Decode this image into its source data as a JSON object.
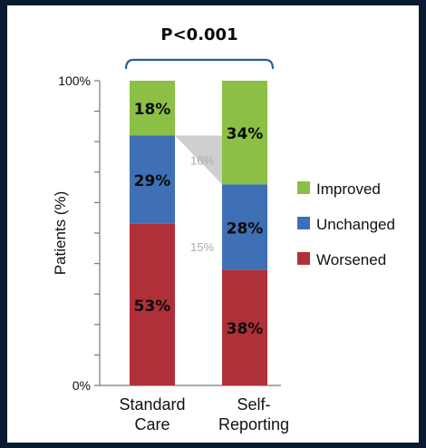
{
  "chart_data": {
    "type": "bar",
    "stacked": true,
    "categories": [
      "Standard Care",
      "Self-Reporting"
    ],
    "category_lines": [
      [
        "Standard",
        "Care"
      ],
      [
        "Self-",
        "Reporting"
      ]
    ],
    "series": [
      {
        "name": "Worsened",
        "values": [
          53,
          38
        ],
        "color": "#b0303a"
      },
      {
        "name": "Unchanged",
        "values": [
          29,
          28
        ],
        "color": "#3f6fb5"
      },
      {
        "name": "Improved",
        "values": [
          18,
          34
        ],
        "color": "#8bbf45"
      }
    ],
    "ylabel": "Patients (%)",
    "ylim": [
      0,
      100
    ],
    "y_tick_labels": [
      "100%",
      "0%"
    ],
    "legend_position": "right",
    "legend_order": [
      "Improved",
      "Unchanged",
      "Worsened"
    ],
    "significance": "P<0.001",
    "shifts": [
      {
        "label": "16%",
        "color": "#aaaaaa"
      },
      {
        "label": "15%",
        "color": "#aaaaaa"
      }
    ]
  }
}
